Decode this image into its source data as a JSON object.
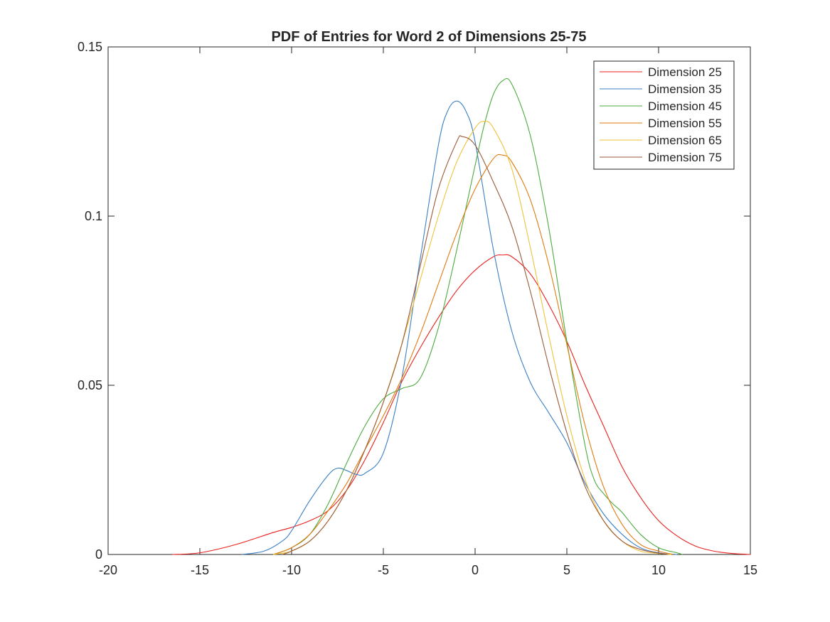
{
  "chart_data": {
    "type": "line",
    "title": "PDF of Entries for Word 2 of Dimensions 25-75",
    "xlabel": "",
    "ylabel": "",
    "xlim": [
      -20,
      15
    ],
    "ylim": [
      0,
      0.15
    ],
    "x_ticks": [
      -20,
      -15,
      -10,
      -5,
      0,
      5,
      10,
      15
    ],
    "x_tick_labels": [
      "-20",
      "-15",
      "-10",
      "-5",
      "0",
      "5",
      "10",
      "15"
    ],
    "y_ticks": [
      0,
      0.05,
      0.1,
      0.15
    ],
    "y_tick_labels": [
      "0",
      "0.05",
      "0.1",
      "0.15"
    ],
    "grid": false,
    "legend_position": "top-right",
    "series": [
      {
        "name": "Dimension 25",
        "color": "#e8211f",
        "x": [
          -16.5,
          -15,
          -13,
          -11,
          -10,
          -9,
          -8,
          -7,
          -6,
          -5,
          -4,
          -3,
          -2,
          -1,
          0,
          1,
          1.5,
          2,
          3,
          4,
          5,
          6,
          7,
          8,
          9,
          10,
          11,
          12,
          13,
          14,
          15
        ],
        "y": [
          0.0,
          0.0005,
          0.003,
          0.0065,
          0.008,
          0.01,
          0.013,
          0.019,
          0.028,
          0.039,
          0.051,
          0.061,
          0.07,
          0.078,
          0.084,
          0.088,
          0.0885,
          0.088,
          0.083,
          0.074,
          0.063,
          0.05,
          0.038,
          0.026,
          0.017,
          0.01,
          0.0055,
          0.0025,
          0.001,
          0.0003,
          0.0
        ]
      },
      {
        "name": "Dimension 35",
        "color": "#3a7fc4",
        "x": [
          -12.7,
          -11.5,
          -10.5,
          -10,
          -9,
          -8,
          -7.5,
          -7,
          -6.5,
          -6,
          -5,
          -4,
          -3,
          -2,
          -1.5,
          -1,
          -0.5,
          0,
          1,
          2,
          3,
          4,
          5,
          6,
          7,
          8,
          9,
          10,
          11
        ],
        "y": [
          0.0,
          0.001,
          0.004,
          0.007,
          0.016,
          0.0235,
          0.0255,
          0.0248,
          0.0237,
          0.024,
          0.03,
          0.052,
          0.087,
          0.121,
          0.131,
          0.134,
          0.131,
          0.122,
          0.09,
          0.066,
          0.051,
          0.042,
          0.033,
          0.021,
          0.012,
          0.006,
          0.002,
          0.0005,
          0.0
        ]
      },
      {
        "name": "Dimension 45",
        "color": "#4bab3f",
        "x": [
          -11,
          -10,
          -9,
          -8,
          -7,
          -6,
          -5,
          -4,
          -3,
          -2,
          -1,
          0,
          0.5,
          1,
          1.5,
          2,
          3,
          4,
          5,
          6,
          6.5,
          7,
          7.5,
          8,
          9,
          10,
          11,
          11.3
        ],
        "y": [
          0.0,
          0.002,
          0.006,
          0.015,
          0.027,
          0.038,
          0.046,
          0.049,
          0.052,
          0.067,
          0.09,
          0.115,
          0.127,
          0.136,
          0.14,
          0.139,
          0.124,
          0.097,
          0.063,
          0.032,
          0.022,
          0.018,
          0.015,
          0.0125,
          0.006,
          0.002,
          0.0005,
          0.0
        ]
      },
      {
        "name": "Dimension 55",
        "color": "#e07b10",
        "x": [
          -11,
          -10,
          -9,
          -8,
          -7,
          -6,
          -5,
          -4,
          -3,
          -2,
          -1,
          0,
          1,
          1.5,
          2,
          3,
          4,
          5,
          6,
          7,
          8,
          9,
          10,
          10.8
        ],
        "y": [
          0.0,
          0.002,
          0.006,
          0.013,
          0.021,
          0.031,
          0.041,
          0.052,
          0.065,
          0.08,
          0.095,
          0.108,
          0.117,
          0.118,
          0.116,
          0.105,
          0.086,
          0.062,
          0.038,
          0.02,
          0.009,
          0.003,
          0.001,
          0.0
        ]
      },
      {
        "name": "Dimension 65",
        "color": "#efc23a",
        "x": [
          -11,
          -10,
          -9,
          -8,
          -7,
          -6,
          -5,
          -4,
          -3,
          -2,
          -1,
          0,
          0.5,
          1,
          2,
          3,
          4,
          5,
          6,
          7,
          8,
          9,
          10,
          10.7
        ],
        "y": [
          0.0,
          0.001,
          0.004,
          0.01,
          0.019,
          0.031,
          0.045,
          0.062,
          0.081,
          0.1,
          0.116,
          0.126,
          0.128,
          0.126,
          0.114,
          0.091,
          0.065,
          0.041,
          0.022,
          0.01,
          0.004,
          0.001,
          0.0003,
          0.0
        ]
      },
      {
        "name": "Dimension 75",
        "color": "#9a5a38",
        "x": [
          -10.5,
          -10,
          -9,
          -8,
          -7,
          -6,
          -5,
          -4,
          -3,
          -2,
          -1,
          -0.7,
          0,
          1,
          2,
          3,
          4,
          5,
          6,
          7,
          8,
          9,
          10,
          10.5
        ],
        "y": [
          0.0,
          0.001,
          0.004,
          0.01,
          0.019,
          0.031,
          0.045,
          0.062,
          0.085,
          0.108,
          0.122,
          0.1235,
          0.121,
          0.11,
          0.097,
          0.078,
          0.056,
          0.036,
          0.02,
          0.01,
          0.004,
          0.0015,
          0.0004,
          0.0
        ]
      }
    ]
  }
}
